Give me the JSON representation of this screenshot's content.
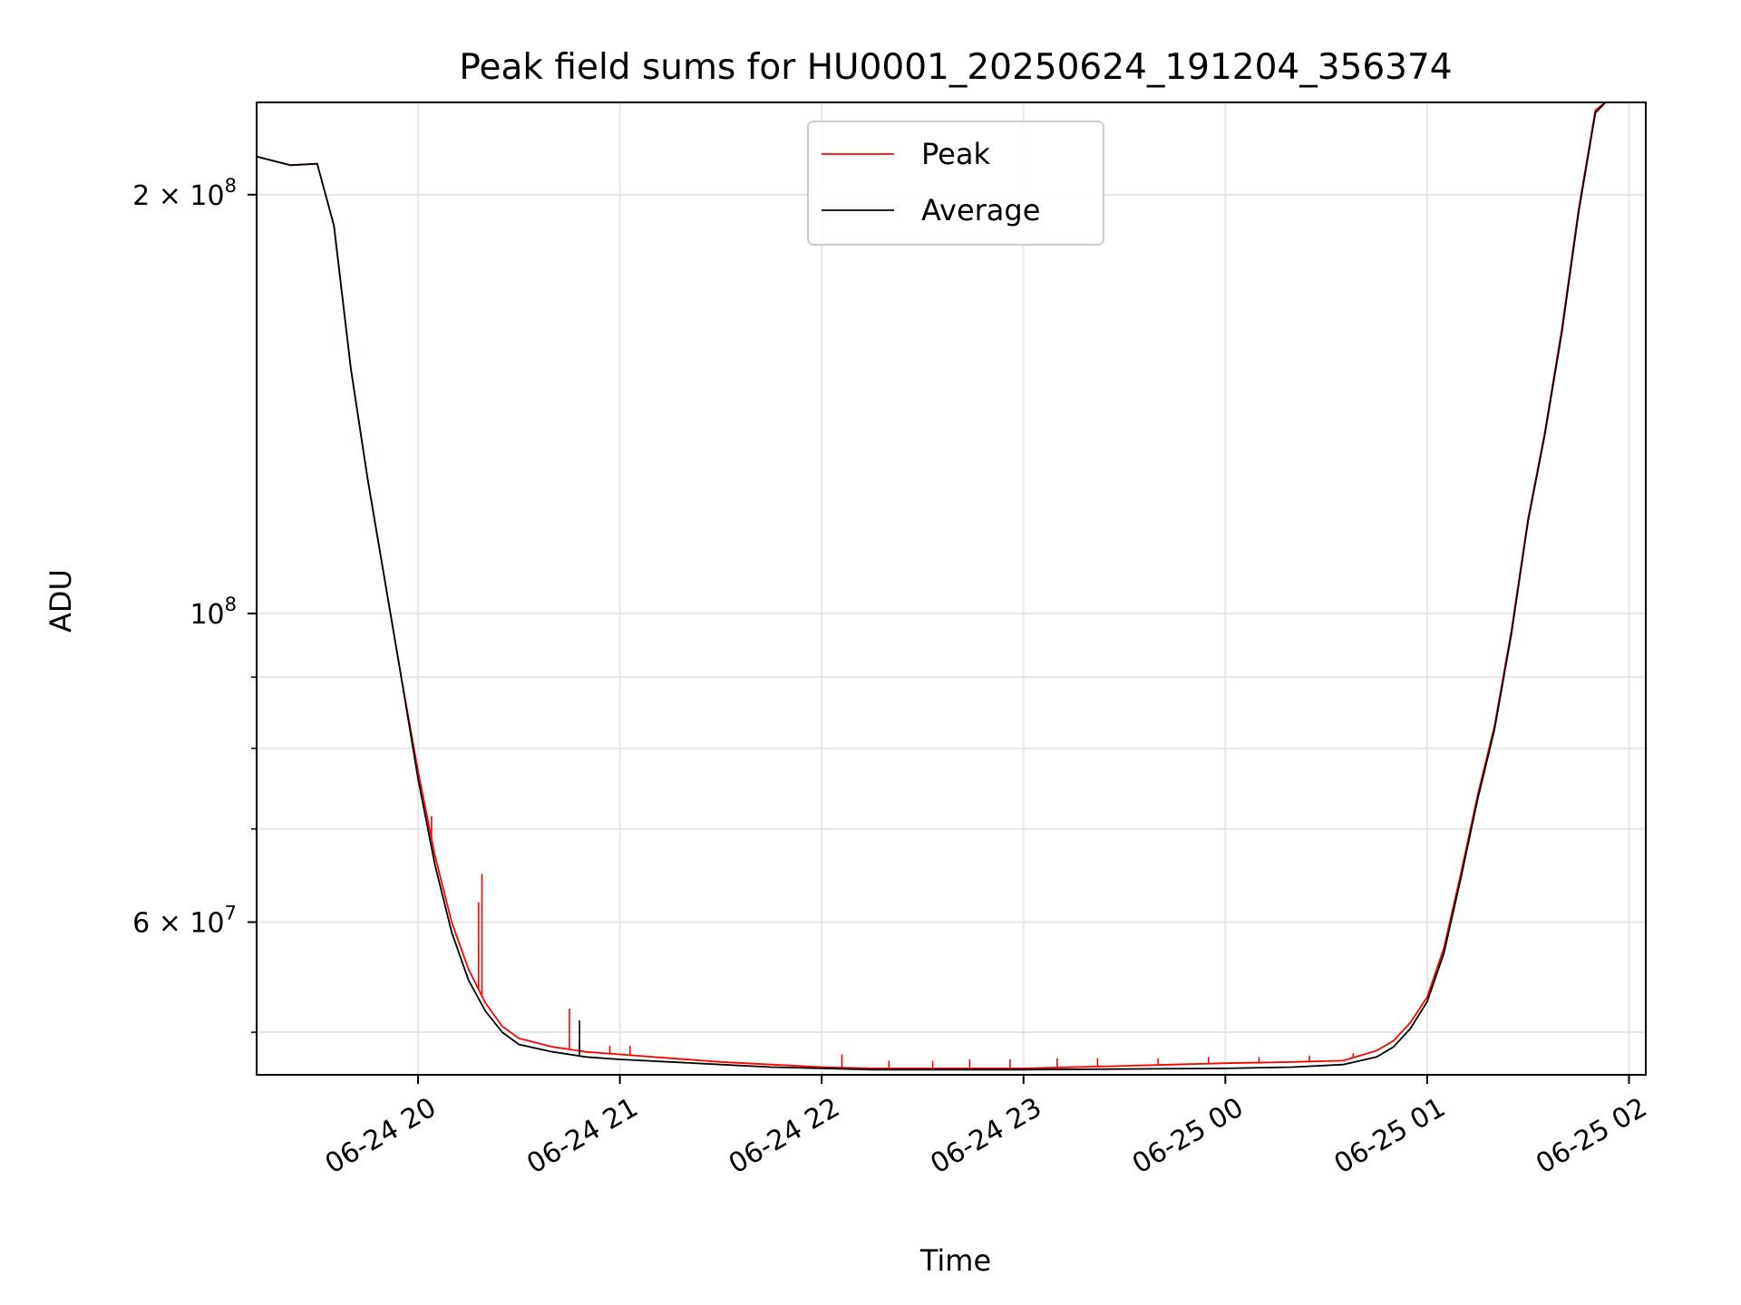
{
  "chart_data": {
    "type": "line",
    "title": "Peak field sums for HU0001_20250624_191204_356374",
    "xlabel": "Time",
    "ylabel": "ADU",
    "y_scale": "log",
    "grid": true,
    "legend_position": "upper center",
    "xlim": [
      "2025-06-24 19:12",
      "2025-06-25 02:05"
    ],
    "ylim": [
      46600000,
      233000000
    ],
    "x_ticks": [
      {
        "value": "2025-06-24 20:00",
        "label": "06-24 20"
      },
      {
        "value": "2025-06-24 21:00",
        "label": "06-24 21"
      },
      {
        "value": "2025-06-24 22:00",
        "label": "06-24 22"
      },
      {
        "value": "2025-06-24 23:00",
        "label": "06-24 23"
      },
      {
        "value": "2025-06-25 00:00",
        "label": "06-25 00"
      },
      {
        "value": "2025-06-25 01:00",
        "label": "06-25 01"
      },
      {
        "value": "2025-06-25 02:00",
        "label": "06-25 02"
      }
    ],
    "y_ticks_major": [
      {
        "value": 60000000,
        "label_base": "6 × 10",
        "label_exp": "7"
      },
      {
        "value": 100000000,
        "label_base": "10",
        "label_exp": "8"
      },
      {
        "value": 200000000,
        "label_base": "2 × 10",
        "label_exp": "8"
      }
    ],
    "y_ticks_minor": [
      50000000,
      70000000,
      80000000,
      90000000
    ],
    "series": [
      {
        "name": "Peak",
        "color": "#ff0000",
        "x": [
          "2025-06-24 19:12",
          "2025-06-24 19:22",
          "2025-06-24 19:30",
          "2025-06-24 19:35",
          "2025-06-24 19:40",
          "2025-06-24 19:45",
          "2025-06-24 19:50",
          "2025-06-24 19:55",
          "2025-06-24 20:00",
          "2025-06-24 20:05",
          "2025-06-24 20:10",
          "2025-06-24 20:15",
          "2025-06-24 20:20",
          "2025-06-24 20:25",
          "2025-06-24 20:30",
          "2025-06-24 20:40",
          "2025-06-24 20:50",
          "2025-06-24 21:00",
          "2025-06-24 21:15",
          "2025-06-24 21:30",
          "2025-06-24 21:45",
          "2025-06-24 22:00",
          "2025-06-24 22:15",
          "2025-06-24 22:30",
          "2025-06-24 23:00",
          "2025-06-24 23:30",
          "2025-06-25 00:00",
          "2025-06-25 00:20",
          "2025-06-25 00:35",
          "2025-06-25 00:45",
          "2025-06-25 00:50",
          "2025-06-25 00:55",
          "2025-06-25 01:00",
          "2025-06-25 01:05",
          "2025-06-25 01:10",
          "2025-06-25 01:15",
          "2025-06-25 01:20",
          "2025-06-25 01:25",
          "2025-06-25 01:30",
          "2025-06-25 01:35",
          "2025-06-25 01:40",
          "2025-06-25 01:45",
          "2025-06-25 01:50",
          "2025-06-25 01:53"
        ],
        "y": [
          213000000,
          210000000,
          210500000,
          190000000,
          150000000,
          125000000,
          106000000,
          90000000,
          77000000,
          67000000,
          60000000,
          55500000,
          52500000,
          50500000,
          49500000,
          48800000,
          48400000,
          48200000,
          47900000,
          47600000,
          47400000,
          47200000,
          47100000,
          47100000,
          47100000,
          47300000,
          47500000,
          47600000,
          47700000,
          48500000,
          49300000,
          50800000,
          53000000,
          57500000,
          65000000,
          74000000,
          83000000,
          97000000,
          117000000,
          135000000,
          160000000,
          195000000,
          230000000,
          233000000
        ],
        "spikes": [
          {
            "x": "2025-06-24 20:04",
            "y": 71500000
          },
          {
            "x": "2025-06-24 20:18",
            "y": 62000000
          },
          {
            "x": "2025-06-24 20:19",
            "y": 65000000
          },
          {
            "x": "2025-06-24 20:45",
            "y": 52000000
          },
          {
            "x": "2025-06-24 20:48",
            "y": 49200000
          },
          {
            "x": "2025-06-24 20:57",
            "y": 48900000
          },
          {
            "x": "2025-06-24 21:03",
            "y": 48900000
          },
          {
            "x": "2025-06-24 22:06",
            "y": 48200000
          },
          {
            "x": "2025-06-24 22:20",
            "y": 47700000
          },
          {
            "x": "2025-06-24 22:33",
            "y": 47700000
          },
          {
            "x": "2025-06-24 22:44",
            "y": 47800000
          },
          {
            "x": "2025-06-24 22:56",
            "y": 47800000
          },
          {
            "x": "2025-06-24 23:10",
            "y": 47900000
          },
          {
            "x": "2025-06-24 23:22",
            "y": 47900000
          },
          {
            "x": "2025-06-24 23:40",
            "y": 47900000
          },
          {
            "x": "2025-06-24 23:55",
            "y": 48000000
          },
          {
            "x": "2025-06-25 00:10",
            "y": 48000000
          },
          {
            "x": "2025-06-25 00:25",
            "y": 48100000
          },
          {
            "x": "2025-06-25 00:38",
            "y": 48300000
          }
        ]
      },
      {
        "name": "Average",
        "color": "#000000",
        "x": [
          "2025-06-24 19:12",
          "2025-06-24 19:22",
          "2025-06-24 19:30",
          "2025-06-24 19:35",
          "2025-06-24 19:40",
          "2025-06-24 19:45",
          "2025-06-24 19:50",
          "2025-06-24 19:55",
          "2025-06-24 20:00",
          "2025-06-24 20:05",
          "2025-06-24 20:10",
          "2025-06-24 20:15",
          "2025-06-24 20:20",
          "2025-06-24 20:25",
          "2025-06-24 20:30",
          "2025-06-24 20:40",
          "2025-06-24 20:50",
          "2025-06-24 21:00",
          "2025-06-24 21:15",
          "2025-06-24 21:30",
          "2025-06-24 21:45",
          "2025-06-24 22:00",
          "2025-06-24 22:15",
          "2025-06-24 22:30",
          "2025-06-24 23:00",
          "2025-06-24 23:30",
          "2025-06-25 00:00",
          "2025-06-25 00:20",
          "2025-06-25 00:35",
          "2025-06-25 00:45",
          "2025-06-25 00:50",
          "2025-06-25 00:55",
          "2025-06-25 01:00",
          "2025-06-25 01:05",
          "2025-06-25 01:10",
          "2025-06-25 01:15",
          "2025-06-25 01:20",
          "2025-06-25 01:25",
          "2025-06-25 01:30",
          "2025-06-25 01:35",
          "2025-06-25 01:40",
          "2025-06-25 01:45",
          "2025-06-25 01:50",
          "2025-06-25 01:53"
        ],
        "y": [
          213000000,
          210000000,
          210500000,
          190000000,
          150000000,
          125000000,
          106000000,
          90000000,
          76000000,
          66000000,
          59000000,
          54500000,
          51800000,
          50000000,
          49000000,
          48400000,
          48000000,
          47800000,
          47600000,
          47400000,
          47200000,
          47100000,
          47000000,
          47000000,
          47000000,
          47050000,
          47100000,
          47200000,
          47400000,
          48000000,
          48800000,
          50300000,
          52600000,
          57000000,
          64500000,
          73500000,
          82500000,
          96500000,
          116500000,
          134500000,
          159000000,
          194000000,
          229000000,
          233000000
        ],
        "spikes": [
          {
            "x": "2025-06-24 20:48",
            "y": 51000000
          }
        ]
      }
    ]
  }
}
